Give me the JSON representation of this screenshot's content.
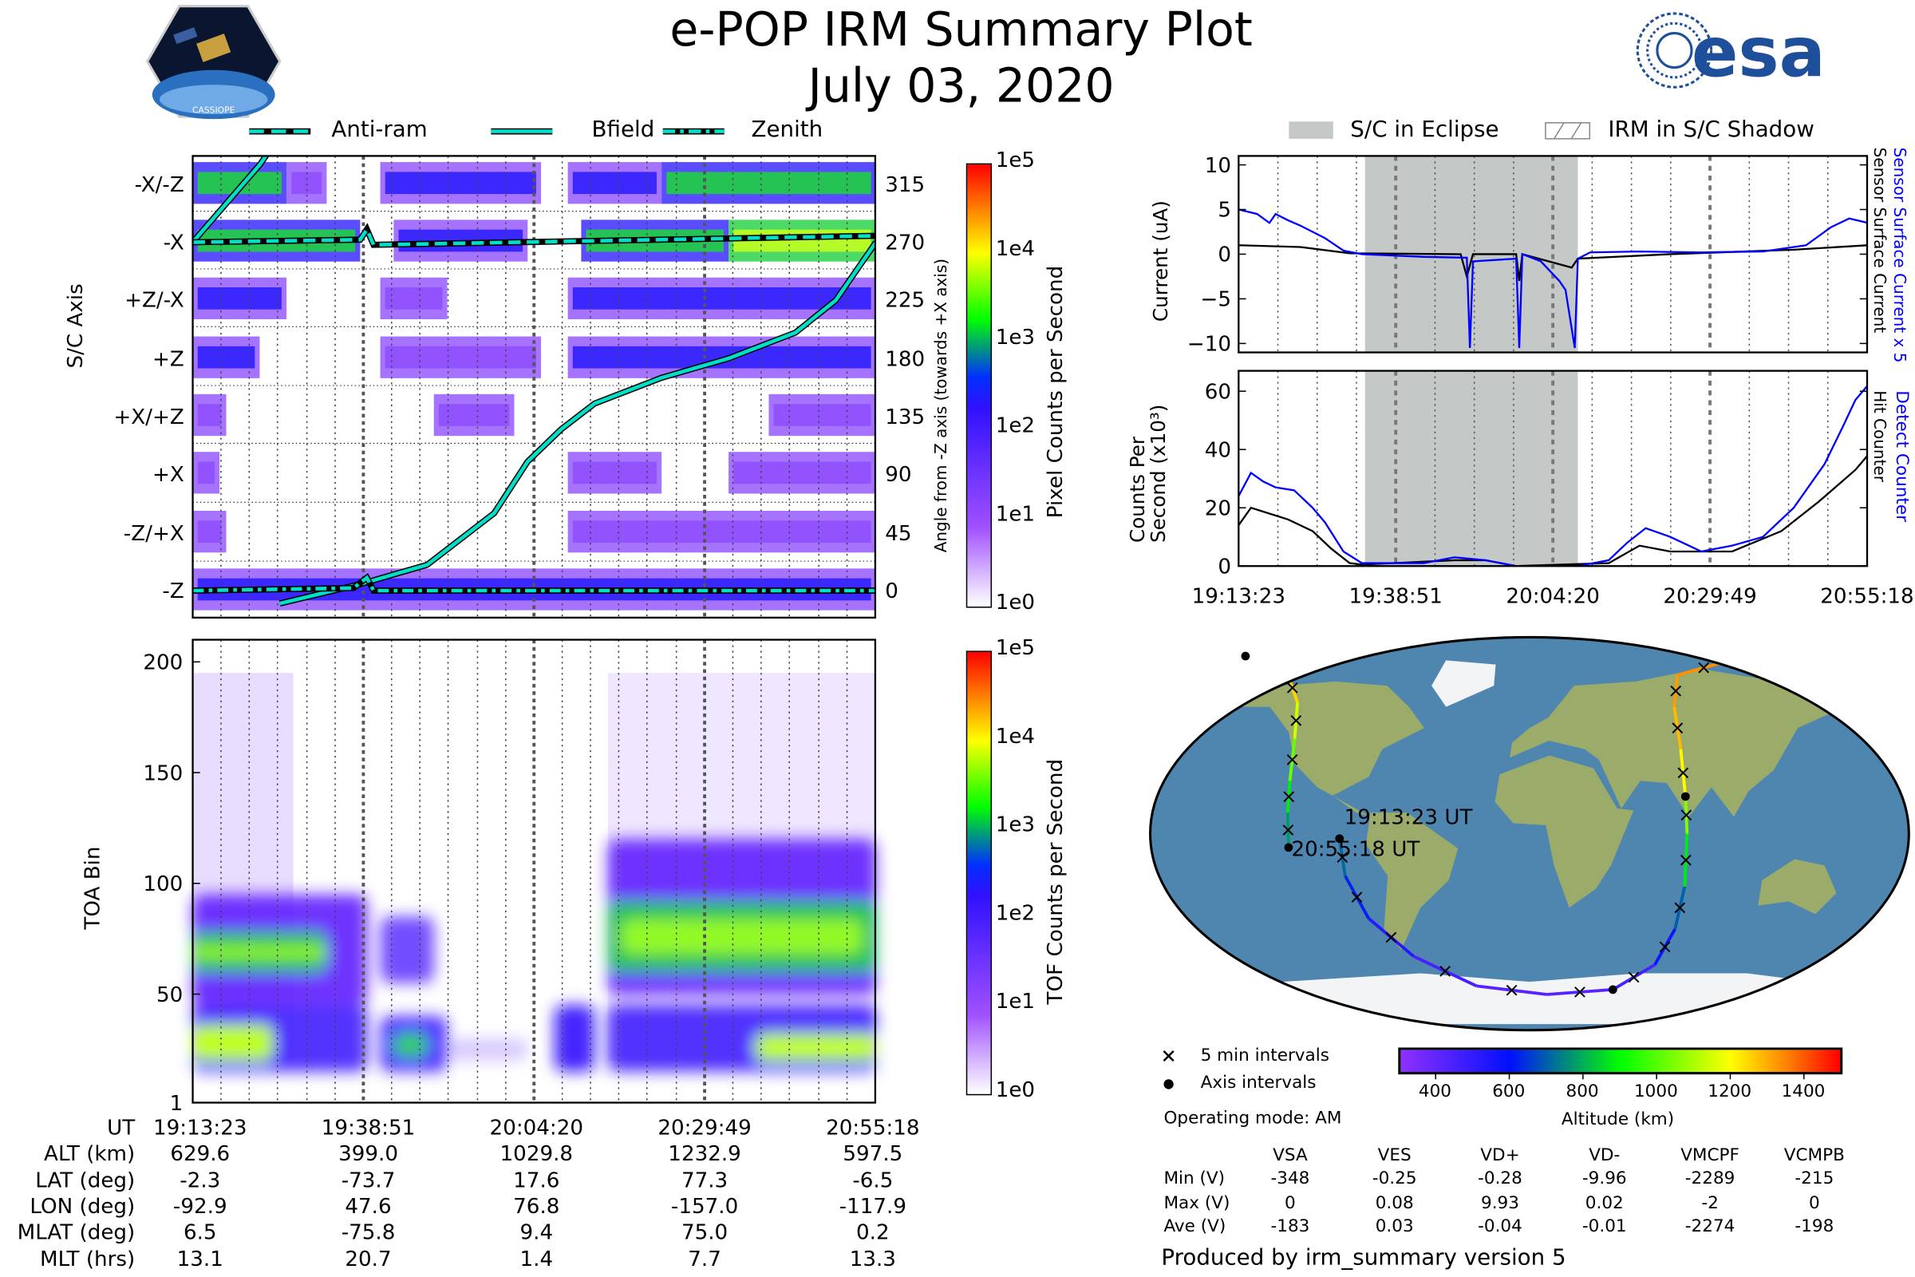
{
  "header": {
    "title": "e-POP IRM Summary Plot",
    "date": "July 03, 2020",
    "left_logo_text": "CASSIOPE",
    "right_logo_text": "esa"
  },
  "legend_top_left": [
    "Anti-ram",
    "Bfield",
    "Zenith"
  ],
  "legend_top_right": [
    "S/C in Eclipse",
    "IRM in S/C Shadow"
  ],
  "colors": {
    "bfield": "#00e0c8",
    "sensor_blue": "#0000ff",
    "eclipse": "#c4c8c6"
  },
  "time_ticks": [
    "19:13:23",
    "19:38:51",
    "20:04:20",
    "20:29:49",
    "20:55:18"
  ],
  "chart_data": [
    {
      "id": "pixel-spectrogram",
      "type": "heatmap",
      "ylabel": "S/C Axis",
      "y_tick_labels": [
        "-X/-Z",
        "-X",
        "+Z/-X",
        "+Z",
        "+X/+Z",
        "+X",
        "-Z/+X",
        "-Z"
      ],
      "y2label": "Angle from -Z axis (towards +X axis)",
      "y2_tick_labels": [
        "315",
        "270",
        "225",
        "180",
        "135",
        "90",
        "45",
        "0"
      ],
      "colorbar": {
        "label": "Pixel Counts per Second",
        "ticks": [
          "1e5",
          "1e4",
          "1e3",
          "1e2",
          "1e1",
          "1e0"
        ]
      },
      "series": [
        {
          "name": "Bfield",
          "angle_deg_at_minutes": [
            [
              0,
              270
            ],
            [
              5,
              300
            ],
            [
              10,
              330
            ],
            [
              12,
              345
            ]
          ]
        },
        {
          "name": "Bfield-b",
          "angle_deg_at_minutes": [
            [
              13,
              -10
            ],
            [
              25,
              5
            ],
            [
              35,
              20
            ],
            [
              45,
              60
            ],
            [
              50,
              100
            ],
            [
              55,
              125
            ],
            [
              60,
              145
            ],
            [
              70,
              165
            ],
            [
              80,
              180
            ],
            [
              90,
              200
            ],
            [
              96,
              225
            ],
            [
              102,
              270
            ]
          ]
        },
        {
          "name": "Anti-ram",
          "angle_deg_at_minutes": [
            [
              0,
              270
            ],
            [
              25,
              272
            ],
            [
              26,
              280
            ],
            [
              27,
              268
            ],
            [
              102,
              275
            ]
          ]
        },
        {
          "name": "Zenith",
          "angle_deg_at_minutes": [
            [
              0,
              0
            ],
            [
              24,
              2
            ],
            [
              26,
              10
            ],
            [
              27,
              0
            ],
            [
              102,
              0
            ]
          ]
        }
      ]
    },
    {
      "id": "tof-spectrogram",
      "type": "heatmap",
      "ylabel": "TOA Bin",
      "y_ticks": [
        "200",
        "150",
        "100",
        "50",
        "1"
      ],
      "ylim": [
        1,
        210
      ],
      "colorbar": {
        "label": "TOF Counts per Second",
        "ticks": [
          "1e5",
          "1e4",
          "1e3",
          "1e2",
          "1e1",
          "1e0"
        ]
      }
    },
    {
      "id": "sensor-current",
      "type": "line",
      "ylabel": "Current (uA)",
      "y_ticks": [
        "10",
        "5",
        "0",
        "−5",
        "−10"
      ],
      "ylim": [
        -11,
        11
      ],
      "y2label_blue": "Sensor Surface Current x 5",
      "y2label_black": "Sensor Surface Current",
      "eclipse_minutes": [
        20,
        55
      ],
      "series": [
        {
          "name": "Sensor Surface Current x 5",
          "color": "#0000ff",
          "points": [
            [
              0,
              5
            ],
            [
              3,
              4.5
            ],
            [
              5,
              3.5
            ],
            [
              6,
              4.5
            ],
            [
              8,
              3.8
            ],
            [
              10,
              3.2
            ],
            [
              14,
              1.8
            ],
            [
              17,
              0.4
            ],
            [
              20,
              0
            ],
            [
              30,
              -0.3
            ],
            [
              37,
              -0.4
            ],
            [
              37.5,
              -10.5
            ],
            [
              38,
              -0.8
            ],
            [
              45,
              -0.5
            ],
            [
              45.5,
              -10.5
            ],
            [
              46,
              0
            ],
            [
              49,
              -0.8
            ],
            [
              52,
              -3
            ],
            [
              53,
              -4
            ],
            [
              54.5,
              -10.5
            ],
            [
              55,
              -0.5
            ],
            [
              57,
              0.2
            ],
            [
              65,
              0.3
            ],
            [
              75,
              0.2
            ],
            [
              85,
              0.3
            ],
            [
              92,
              1
            ],
            [
              96,
              3
            ],
            [
              99,
              4
            ],
            [
              102,
              3.5
            ]
          ]
        },
        {
          "name": "Sensor Surface Current",
          "color": "#000000",
          "points": [
            [
              0,
              1
            ],
            [
              10,
              0.8
            ],
            [
              18,
              0.1
            ],
            [
              36,
              0
            ],
            [
              37,
              -2.5
            ],
            [
              38,
              0
            ],
            [
              45,
              0
            ],
            [
              45.5,
              -3
            ],
            [
              46,
              0
            ],
            [
              54,
              -1.5
            ],
            [
              55,
              -0.5
            ],
            [
              70,
              0
            ],
            [
              90,
              0.5
            ],
            [
              102,
              1
            ]
          ]
        }
      ]
    },
    {
      "id": "detect-counter",
      "type": "line",
      "ylabel": "Counts Per Second (x10³)",
      "y_ticks": [
        "60",
        "40",
        "20",
        "0"
      ],
      "ylim": [
        0,
        67
      ],
      "y2label_blue": "Detect Counter",
      "y2label_black": "Hit Counter",
      "series": [
        {
          "name": "Detect Counter",
          "color": "#0000ff",
          "points": [
            [
              0,
              24
            ],
            [
              2,
              32
            ],
            [
              4,
              29
            ],
            [
              6,
              27
            ],
            [
              9,
              26
            ],
            [
              12,
              20
            ],
            [
              14,
              15
            ],
            [
              17,
              5
            ],
            [
              20,
              1
            ],
            [
              30,
              1
            ],
            [
              35,
              3
            ],
            [
              40,
              2
            ],
            [
              45,
              0
            ],
            [
              55,
              0
            ],
            [
              60,
              2
            ],
            [
              63,
              8
            ],
            [
              66,
              13
            ],
            [
              70,
              10
            ],
            [
              75,
              5
            ],
            [
              80,
              7
            ],
            [
              85,
              10
            ],
            [
              90,
              20
            ],
            [
              95,
              35
            ],
            [
              98,
              48
            ],
            [
              100,
              57
            ],
            [
              102,
              62
            ]
          ]
        },
        {
          "name": "Hit Counter",
          "color": "#000000",
          "points": [
            [
              0,
              14
            ],
            [
              2,
              20
            ],
            [
              5,
              18
            ],
            [
              8,
              16
            ],
            [
              12,
              12
            ],
            [
              15,
              6
            ],
            [
              18,
              1
            ],
            [
              20,
              0.5
            ],
            [
              35,
              2
            ],
            [
              40,
              2
            ],
            [
              45,
              0
            ],
            [
              60,
              1
            ],
            [
              65,
              7
            ],
            [
              70,
              5
            ],
            [
              80,
              5
            ],
            [
              88,
              12
            ],
            [
              94,
              22
            ],
            [
              100,
              33
            ],
            [
              102,
              38
            ]
          ]
        }
      ]
    },
    {
      "id": "orbit-map",
      "type": "scatter",
      "track_labels": [
        "19:13:23 UT",
        "20:55:18 UT"
      ],
      "track": [
        [
          -92.9,
          -2.3,
          630
        ],
        [
          -91,
          -20,
          560
        ],
        [
          -82,
          -40,
          480
        ],
        [
          -62,
          -58,
          420
        ],
        [
          -30,
          -72,
          400
        ],
        [
          10,
          -76,
          399
        ],
        [
          47.6,
          -73.7,
          420
        ],
        [
          68,
          -62,
          520
        ],
        [
          75,
          -45,
          620
        ],
        [
          77,
          -25,
          760
        ],
        [
          77,
          0,
          900
        ],
        [
          76.8,
          17.6,
          1030
        ],
        [
          77,
          40,
          1150
        ],
        [
          78,
          60,
          1210
        ],
        [
          85,
          75,
          1232
        ],
        [
          120,
          82,
          1240
        ],
        [
          180,
          85,
          1230
        ]
      ],
      "track2": [
        [
          -170,
          84,
          1200
        ],
        [
          -140,
          76,
          1100
        ],
        [
          -126,
          62,
          980
        ],
        [
          -121,
          45,
          880
        ],
        [
          -119,
          25,
          760
        ],
        [
          -118.5,
          10,
          680
        ],
        [
          -117.9,
          -6.5,
          597
        ]
      ],
      "legend": [
        "5 min intervals",
        "Axis intervals"
      ],
      "colorbar": {
        "label": "Altitude (km)",
        "ticks": [
          "400",
          "600",
          "800",
          "1000",
          "1200",
          "1400"
        ]
      }
    }
  ],
  "operating_mode": "Operating mode: AM",
  "geo_table": {
    "rows": [
      {
        "label": "UT",
        "values": [
          "19:13:23",
          "19:38:51",
          "20:04:20",
          "20:29:49",
          "20:55:18"
        ]
      },
      {
        "label": "ALT (km)",
        "values": [
          "629.6",
          "399.0",
          "1029.8",
          "1232.9",
          "597.5"
        ]
      },
      {
        "label": "LAT (deg)",
        "values": [
          "-2.3",
          "-73.7",
          "17.6",
          "77.3",
          "-6.5"
        ]
      },
      {
        "label": "LON (deg)",
        "values": [
          "-92.9",
          "47.6",
          "76.8",
          "-157.0",
          "-117.9"
        ]
      },
      {
        "label": "MLAT (deg)",
        "values": [
          "6.5",
          "-75.8",
          "9.4",
          "75.0",
          "0.2"
        ]
      },
      {
        "label": "MLT (hrs)",
        "values": [
          "13.1",
          "20.7",
          "1.4",
          "7.7",
          "13.3"
        ]
      }
    ]
  },
  "voltage_table": {
    "headers": [
      "VSA",
      "VES",
      "VD+",
      "VD-",
      "VMCPF",
      "VCMPB"
    ],
    "rows": [
      {
        "label": "Min (V)",
        "values": [
          "-348",
          "-0.25",
          "-0.28",
          "-9.96",
          "-2289",
          "-215"
        ]
      },
      {
        "label": "Max (V)",
        "values": [
          "0",
          "0.08",
          "9.93",
          "0.02",
          "-2",
          "0"
        ]
      },
      {
        "label": "Ave (V)",
        "values": [
          "-183",
          "0.03",
          "-0.04",
          "-0.01",
          "-2274",
          "-198"
        ]
      }
    ]
  },
  "footer": "Produced by irm_summary version 5"
}
